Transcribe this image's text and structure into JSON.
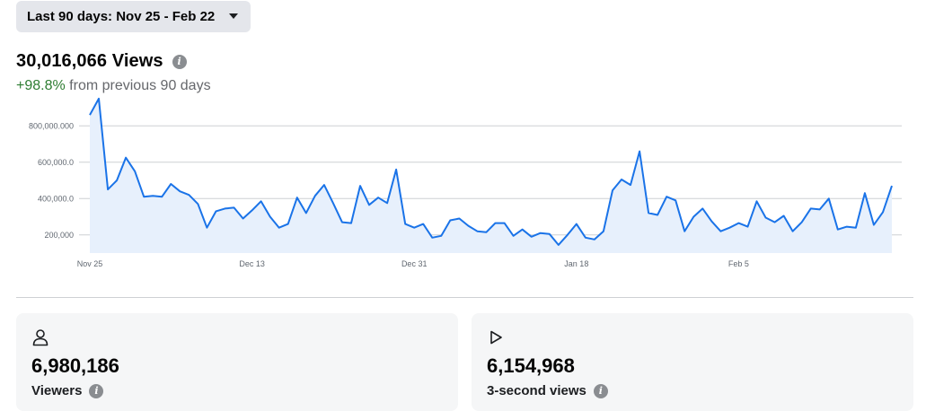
{
  "date_range": {
    "label": "Last 90 days: Nov 25 - Feb 22",
    "icon": "caret-down-icon"
  },
  "summary": {
    "value": "30,016,066 Views",
    "change_pct": "+98.8%",
    "change_text": "from previous 90 days",
    "info_icon": "info-icon"
  },
  "colors": {
    "line": "#1a73e8",
    "area": "#e7f0fc",
    "grid": "#ced0d4",
    "positive": "#2e7d32"
  },
  "chart_data": {
    "type": "area",
    "x_tick_labels": [
      "Nov 25",
      "Dec 13",
      "Dec 31",
      "Jan 18",
      "Feb 5"
    ],
    "x_tick_indices": [
      0,
      18,
      36,
      54,
      72
    ],
    "y_tick_labels": [
      "800,000.000",
      "600,000.0",
      "400,000.0",
      "200,000"
    ],
    "y_ticks": [
      800000,
      600000,
      400000,
      200000
    ],
    "ylim": [
      100000,
      900000
    ],
    "grid": true,
    "legend": "none",
    "values": [
      860000,
      950000,
      450000,
      500000,
      625000,
      550000,
      410000,
      415000,
      410000,
      480000,
      440000,
      420000,
      370000,
      240000,
      330000,
      345000,
      350000,
      290000,
      335000,
      385000,
      300000,
      240000,
      260000,
      405000,
      320000,
      415000,
      475000,
      375000,
      270000,
      265000,
      470000,
      365000,
      405000,
      375000,
      560000,
      260000,
      240000,
      260000,
      185000,
      195000,
      280000,
      290000,
      250000,
      220000,
      215000,
      265000,
      265000,
      195000,
      230000,
      190000,
      210000,
      205000,
      145000,
      200000,
      260000,
      185000,
      175000,
      220000,
      445000,
      505000,
      475000,
      660000,
      320000,
      310000,
      410000,
      390000,
      220000,
      300000,
      345000,
      275000,
      220000,
      240000,
      265000,
      245000,
      385000,
      295000,
      270000,
      305000,
      220000,
      270000,
      345000,
      340000,
      400000,
      230000,
      245000,
      240000,
      430000,
      255000,
      325000,
      470000
    ]
  },
  "cards": [
    {
      "icon": "person-icon",
      "value": "6,980,186",
      "label": "Viewers",
      "info_icon": "info-icon"
    },
    {
      "icon": "play-icon",
      "value": "6,154,968",
      "label": "3-second views",
      "info_icon": "info-icon"
    }
  ]
}
